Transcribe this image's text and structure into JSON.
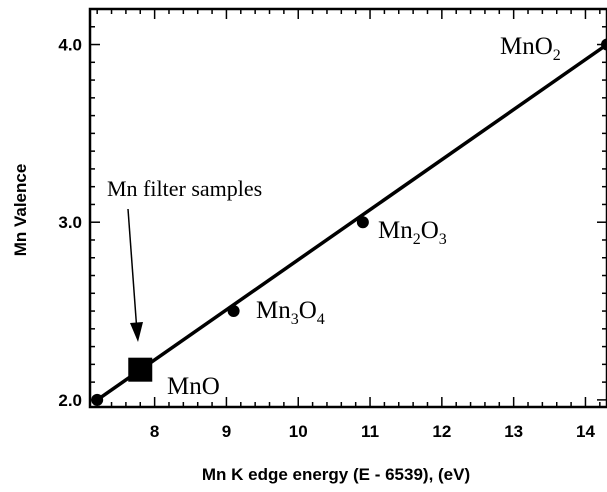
{
  "chart_data": {
    "type": "scatter",
    "title": "",
    "xlabel": "Mn K edge energy (E - 6539), (eV)",
    "ylabel": "Mn Valence",
    "xlim": [
      7.1,
      14.3
    ],
    "ylim": [
      1.96,
      4.2
    ],
    "x_ticks": [
      8,
      9,
      10,
      11,
      12,
      13,
      14
    ],
    "y_ticks": [
      2.0,
      3.0,
      4.0
    ],
    "x_tick_labels": [
      "8",
      "9",
      "10",
      "11",
      "12",
      "13",
      "14"
    ],
    "y_tick_labels": [
      "2.0",
      "3.0",
      "4.0"
    ],
    "grid": false,
    "series": [
      {
        "marker": "circle",
        "points": [
          {
            "x": 7.2,
            "y": 2.0,
            "label": "MnO"
          },
          {
            "x": 9.1,
            "y": 2.5,
            "label": "Mn3O4"
          },
          {
            "x": 10.9,
            "y": 3.0,
            "label": "Mn2O3"
          },
          {
            "x": 14.3,
            "y": 4.0,
            "label": "MnO2"
          }
        ]
      },
      {
        "marker": "square",
        "points": [
          {
            "x": 7.8,
            "y": 2.17
          }
        ]
      }
    ],
    "fit_line": {
      "x": [
        7.2,
        14.3
      ],
      "y": [
        2.0,
        4.0
      ]
    },
    "annotations": {
      "filter_samples": "Mn filter samples",
      "mno": "MnO",
      "mn3o4_a": "Mn",
      "mn3o4_b": "3",
      "mn3o4_c": "O",
      "mn3o4_d": "4",
      "mn2o3_a": "Mn",
      "mn2o3_b": "2",
      "mn2o3_c": "O",
      "mn2o3_d": "3",
      "mno2_a": "MnO",
      "mno2_b": "2"
    }
  }
}
